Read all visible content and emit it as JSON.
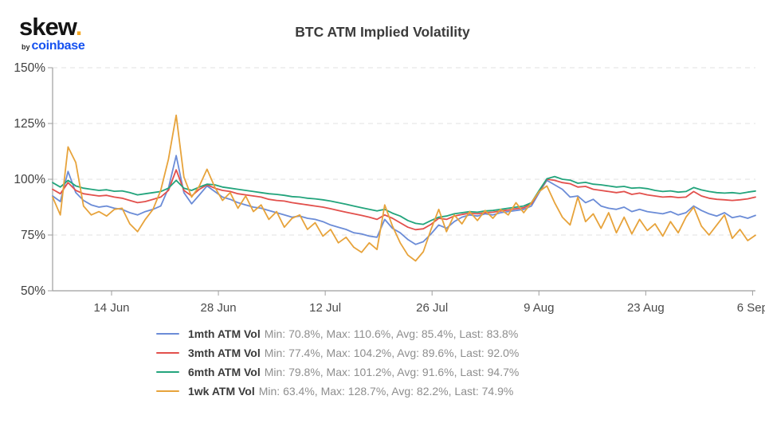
{
  "logo": {
    "brand": "skew",
    "dot": ".",
    "by": "by",
    "company": "coinbase"
  },
  "colors": {
    "accent_orange": "#f5a824",
    "coinbase_blue": "#1652f0",
    "grid": "#e0e0e0",
    "axis": "#9e9e9e",
    "title_text": "#3b3b3b",
    "stats_text": "#8e8e8e"
  },
  "chart_data": {
    "type": "line",
    "title": "BTC ATM Implied Volatility",
    "xlabel": "",
    "ylabel": "",
    "ylim": [
      50,
      150
    ],
    "y_ticks": [
      "150%",
      "125%",
      "100%",
      "75%",
      "50%"
    ],
    "x_ticks": [
      "14 Jun",
      "28 Jun",
      "12 Jul",
      "26 Jul",
      "9 Aug",
      "23 Aug",
      "6 Sep"
    ],
    "x_start_date": "7 Jun",
    "x_end_date": "6 Sep",
    "grid": "horizontal-dashed",
    "legend_position": "bottom",
    "series": [
      {
        "name": "1mth ATM Vol",
        "color": "#6b8cd7",
        "min": 70.8,
        "max": 110.6,
        "avg": 85.4,
        "last": 83.8,
        "stats": "Min: 70.8%, Max: 110.6%, Avg: 85.4%, Last: 83.8%",
        "values": [
          92.5,
          90.0,
          103.5,
          94.0,
          90.5,
          88.5,
          87.5,
          88.0,
          87.0,
          86.5,
          85.0,
          84.0,
          85.5,
          86.5,
          88.0,
          96.0,
          110.6,
          94.0,
          89.0,
          93.0,
          97.0,
          94.5,
          92.0,
          91.0,
          89.5,
          88.5,
          87.5,
          87.0,
          86.0,
          85.0,
          84.0,
          83.0,
          83.5,
          82.5,
          82.0,
          81.0,
          79.5,
          78.5,
          77.5,
          76.0,
          75.5,
          74.5,
          74.0,
          82.0,
          78.0,
          76.0,
          73.0,
          70.8,
          72.0,
          75.5,
          79.5,
          78.0,
          81.0,
          83.0,
          84.0,
          83.5,
          84.5,
          84.0,
          85.0,
          85.5,
          86.0,
          86.5,
          88.0,
          94.0,
          99.5,
          97.5,
          95.5,
          92.0,
          92.5,
          89.5,
          91.0,
          88.0,
          87.0,
          86.5,
          87.5,
          85.5,
          86.5,
          85.5,
          85.0,
          84.5,
          85.5,
          84.0,
          85.0,
          88.0,
          86.0,
          84.5,
          83.5,
          85.0,
          82.8,
          83.5,
          82.5,
          83.8
        ]
      },
      {
        "name": "3mth ATM Vol",
        "color": "#e2504c",
        "min": 77.4,
        "max": 104.2,
        "avg": 89.6,
        "last": 92.0,
        "stats": "Min: 77.4%, Max: 104.2%, Avg: 89.6%, Last: 92.0%",
        "values": [
          95.5,
          93.5,
          98.5,
          95.0,
          93.5,
          93.0,
          92.5,
          92.8,
          92.0,
          91.5,
          90.5,
          89.5,
          90.0,
          91.0,
          92.0,
          95.0,
          104.2,
          95.0,
          92.5,
          95.5,
          97.5,
          96.0,
          95.0,
          94.5,
          93.5,
          93.0,
          92.5,
          92.0,
          91.0,
          90.5,
          90.2,
          89.5,
          89.0,
          88.5,
          88.0,
          87.5,
          86.8,
          86.0,
          85.2,
          84.5,
          83.8,
          83.0,
          82.0,
          84.0,
          82.5,
          80.5,
          78.5,
          77.4,
          77.8,
          79.8,
          82.5,
          82.0,
          83.5,
          84.2,
          84.8,
          84.5,
          85.0,
          85.2,
          85.8,
          86.2,
          86.8,
          87.2,
          89.0,
          94.5,
          100.0,
          99.5,
          98.5,
          98.0,
          96.5,
          96.8,
          95.5,
          95.0,
          94.5,
          94.0,
          94.5,
          93.2,
          93.8,
          93.0,
          92.5,
          92.0,
          92.2,
          91.8,
          92.0,
          94.5,
          92.5,
          91.5,
          91.0,
          90.8,
          90.5,
          90.8,
          91.2,
          92.0
        ]
      },
      {
        "name": "6mth ATM Vol",
        "color": "#23a47c",
        "min": 79.8,
        "max": 101.2,
        "avg": 91.6,
        "last": 94.7,
        "stats": "Min: 79.8%, Max: 101.2%, Avg: 91.6%, Last: 94.7%",
        "values": [
          98.5,
          96.5,
          99.5,
          97.0,
          96.0,
          95.5,
          95.0,
          95.3,
          94.6,
          94.8,
          94.0,
          93.0,
          93.5,
          94.0,
          94.5,
          96.0,
          99.5,
          96.0,
          95.0,
          96.5,
          97.8,
          97.5,
          96.5,
          96.0,
          95.5,
          95.0,
          94.5,
          94.0,
          93.5,
          93.2,
          92.8,
          92.2,
          92.0,
          91.5,
          91.2,
          90.8,
          90.2,
          89.5,
          88.8,
          88.0,
          87.2,
          86.5,
          85.8,
          86.5,
          84.8,
          83.5,
          81.5,
          80.2,
          79.8,
          81.5,
          83.0,
          83.5,
          84.5,
          85.0,
          85.5,
          85.2,
          85.8,
          86.0,
          86.5,
          87.0,
          87.5,
          88.0,
          89.5,
          95.0,
          100.2,
          101.2,
          100.0,
          99.6,
          98.2,
          98.6,
          97.8,
          97.5,
          97.0,
          96.5,
          96.8,
          96.0,
          96.2,
          95.8,
          95.0,
          94.5,
          94.8,
          94.2,
          94.5,
          96.3,
          95.2,
          94.5,
          94.0,
          93.8,
          94.0,
          93.6,
          94.2,
          94.7
        ]
      },
      {
        "name": "1wk ATM Vol",
        "color": "#e7a33b",
        "min": 63.4,
        "max": 128.7,
        "avg": 82.2,
        "last": 74.9,
        "stats": "Min: 63.4%, Max: 128.7%, Avg: 82.2%, Last: 74.9%",
        "values": [
          92.0,
          84.0,
          114.5,
          107.5,
          88.0,
          84.0,
          85.5,
          83.5,
          86.5,
          87.0,
          80.0,
          76.5,
          82.0,
          86.5,
          95.0,
          109.0,
          128.7,
          101.0,
          92.0,
          97.0,
          104.5,
          96.5,
          90.5,
          94.0,
          87.0,
          92.5,
          85.5,
          88.5,
          82.0,
          85.5,
          78.5,
          82.5,
          84.0,
          77.5,
          80.5,
          74.5,
          77.5,
          71.5,
          74.0,
          69.5,
          67.2,
          71.5,
          68.5,
          88.5,
          79.0,
          71.5,
          66.0,
          63.4,
          67.5,
          77.5,
          86.5,
          76.5,
          84.0,
          80.0,
          85.5,
          81.5,
          86.0,
          82.5,
          86.5,
          84.0,
          89.5,
          85.0,
          89.5,
          94.5,
          97.0,
          89.5,
          83.0,
          79.5,
          92.0,
          81.0,
          84.5,
          78.0,
          85.0,
          76.0,
          83.0,
          75.5,
          82.0,
          77.0,
          80.0,
          74.5,
          81.0,
          76.0,
          83.0,
          87.5,
          79.0,
          75.0,
          79.5,
          84.0,
          73.5,
          77.5,
          72.5,
          74.9
        ]
      }
    ]
  }
}
